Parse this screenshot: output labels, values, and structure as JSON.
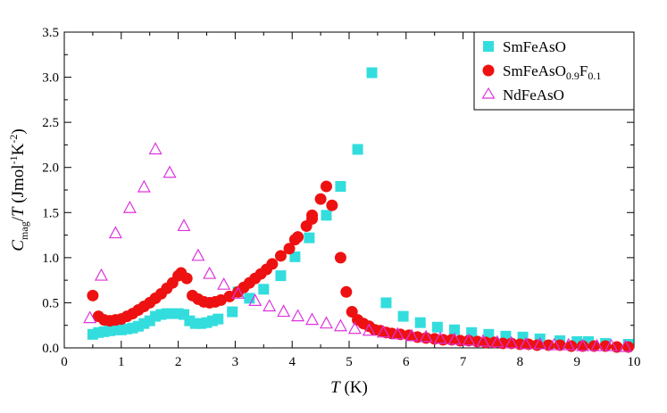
{
  "chart_data": {
    "type": "scatter",
    "xlabel": "T (K)",
    "ylabel": "C_mag/T (Jmol^-1K^-2)",
    "xlim": [
      0,
      10
    ],
    "ylim": [
      0,
      3.5
    ],
    "x_ticks": [
      "0",
      "1",
      "2",
      "3",
      "4",
      "5",
      "6",
      "7",
      "8",
      "9",
      "10"
    ],
    "y_ticks": [
      "0.0",
      "0.5",
      "1.0",
      "1.5",
      "2.0",
      "2.5",
      "3.0",
      "3.5"
    ],
    "grid": false,
    "legend": "top-right",
    "series": [
      {
        "name": "SmFeAsO",
        "marker": "square",
        "color": "#33dddd",
        "points": [
          [
            0.5,
            0.15
          ],
          [
            0.6,
            0.17
          ],
          [
            0.7,
            0.18
          ],
          [
            0.8,
            0.19
          ],
          [
            0.9,
            0.2
          ],
          [
            1.0,
            0.2
          ],
          [
            1.1,
            0.21
          ],
          [
            1.2,
            0.22
          ],
          [
            1.3,
            0.24
          ],
          [
            1.4,
            0.27
          ],
          [
            1.5,
            0.3
          ],
          [
            1.6,
            0.35
          ],
          [
            1.7,
            0.37
          ],
          [
            1.8,
            0.38
          ],
          [
            1.9,
            0.38
          ],
          [
            2.0,
            0.38
          ],
          [
            2.1,
            0.37
          ],
          [
            2.2,
            0.3
          ],
          [
            2.3,
            0.27
          ],
          [
            2.4,
            0.27
          ],
          [
            2.5,
            0.28
          ],
          [
            2.6,
            0.3
          ],
          [
            2.7,
            0.32
          ],
          [
            2.95,
            0.4
          ],
          [
            3.05,
            0.62
          ],
          [
            3.25,
            0.55
          ],
          [
            3.5,
            0.65
          ],
          [
            3.8,
            0.8
          ],
          [
            4.05,
            1.01
          ],
          [
            4.3,
            1.22
          ],
          [
            4.6,
            1.47
          ],
          [
            4.85,
            1.79
          ],
          [
            5.15,
            2.2
          ],
          [
            5.4,
            3.05
          ],
          [
            5.65,
            0.5
          ],
          [
            5.95,
            0.35
          ],
          [
            6.25,
            0.28
          ],
          [
            6.55,
            0.23
          ],
          [
            6.85,
            0.2
          ],
          [
            7.15,
            0.17
          ],
          [
            7.45,
            0.15
          ],
          [
            7.75,
            0.13
          ],
          [
            8.05,
            0.12
          ],
          [
            8.35,
            0.1
          ],
          [
            8.7,
            0.08
          ],
          [
            9.0,
            0.07
          ],
          [
            9.2,
            0.07
          ],
          [
            9.5,
            0.05
          ],
          [
            9.9,
            0.04
          ]
        ]
      },
      {
        "name": "SmFeAsO0.9F0.1",
        "marker": "circle",
        "color": "#ee1111",
        "points": [
          [
            0.5,
            0.58
          ],
          [
            0.6,
            0.35
          ],
          [
            0.7,
            0.31
          ],
          [
            0.8,
            0.3
          ],
          [
            0.9,
            0.31
          ],
          [
            1.0,
            0.32
          ],
          [
            1.1,
            0.35
          ],
          [
            1.2,
            0.38
          ],
          [
            1.3,
            0.42
          ],
          [
            1.4,
            0.46
          ],
          [
            1.5,
            0.5
          ],
          [
            1.6,
            0.55
          ],
          [
            1.7,
            0.6
          ],
          [
            1.8,
            0.66
          ],
          [
            1.9,
            0.72
          ],
          [
            2.0,
            0.8
          ],
          [
            2.05,
            0.83
          ],
          [
            2.15,
            0.77
          ],
          [
            2.25,
            0.58
          ],
          [
            2.35,
            0.54
          ],
          [
            2.45,
            0.51
          ],
          [
            2.55,
            0.5
          ],
          [
            2.65,
            0.51
          ],
          [
            2.75,
            0.53
          ],
          [
            2.9,
            0.57
          ],
          [
            3.05,
            0.62
          ],
          [
            3.15,
            0.67
          ],
          [
            3.25,
            0.72
          ],
          [
            3.35,
            0.77
          ],
          [
            3.45,
            0.82
          ],
          [
            3.55,
            0.87
          ],
          [
            3.65,
            0.93
          ],
          [
            3.8,
            1.02
          ],
          [
            3.95,
            1.1
          ],
          [
            4.05,
            1.2
          ],
          [
            4.1,
            1.23
          ],
          [
            4.25,
            1.35
          ],
          [
            4.35,
            1.43
          ],
          [
            4.35,
            1.47
          ],
          [
            4.5,
            1.65
          ],
          [
            4.6,
            1.79
          ],
          [
            4.7,
            1.58
          ],
          [
            4.85,
            1.0
          ],
          [
            4.95,
            0.62
          ],
          [
            5.05,
            0.4
          ],
          [
            5.15,
            0.31
          ],
          [
            5.25,
            0.27
          ],
          [
            5.35,
            0.24
          ],
          [
            5.45,
            0.2
          ],
          [
            5.55,
            0.19
          ],
          [
            5.65,
            0.17
          ],
          [
            5.75,
            0.16
          ],
          [
            5.9,
            0.15
          ],
          [
            6.05,
            0.14
          ],
          [
            6.2,
            0.12
          ],
          [
            6.35,
            0.11
          ],
          [
            6.5,
            0.1
          ],
          [
            6.65,
            0.09
          ],
          [
            6.8,
            0.09
          ],
          [
            6.95,
            0.08
          ],
          [
            7.1,
            0.08
          ],
          [
            7.25,
            0.07
          ],
          [
            7.4,
            0.06
          ],
          [
            7.55,
            0.06
          ],
          [
            7.7,
            0.05
          ],
          [
            7.85,
            0.05
          ],
          [
            8.0,
            0.04
          ],
          [
            8.15,
            0.04
          ],
          [
            8.3,
            0.03
          ],
          [
            8.5,
            0.03
          ],
          [
            8.7,
            0.03
          ],
          [
            8.9,
            0.02
          ],
          [
            9.1,
            0.02
          ],
          [
            9.3,
            0.02
          ],
          [
            9.5,
            0.02
          ],
          [
            9.7,
            0.01
          ],
          [
            9.9,
            0.01
          ]
        ]
      },
      {
        "name": "NdFeAsO",
        "marker": "triangle",
        "color": "#dd33dd",
        "points": [
          [
            0.45,
            0.33
          ],
          [
            0.65,
            0.8
          ],
          [
            0.9,
            1.27
          ],
          [
            1.15,
            1.55
          ],
          [
            1.4,
            1.78
          ],
          [
            1.6,
            2.2
          ],
          [
            1.85,
            1.94
          ],
          [
            2.1,
            1.35
          ],
          [
            2.35,
            1.02
          ],
          [
            2.55,
            0.82
          ],
          [
            2.8,
            0.7
          ],
          [
            3.05,
            0.6
          ],
          [
            3.35,
            0.52
          ],
          [
            3.6,
            0.46
          ],
          [
            3.85,
            0.4
          ],
          [
            4.1,
            0.35
          ],
          [
            4.35,
            0.31
          ],
          [
            4.6,
            0.27
          ],
          [
            4.85,
            0.24
          ],
          [
            5.1,
            0.21
          ],
          [
            5.35,
            0.19
          ],
          [
            5.6,
            0.17
          ],
          [
            5.85,
            0.15
          ],
          [
            6.1,
            0.13
          ],
          [
            6.35,
            0.12
          ],
          [
            6.6,
            0.1
          ],
          [
            6.85,
            0.09
          ],
          [
            7.1,
            0.08
          ],
          [
            7.35,
            0.07
          ],
          [
            7.6,
            0.06
          ],
          [
            7.85,
            0.05
          ],
          [
            8.1,
            0.04
          ],
          [
            8.35,
            0.04
          ],
          [
            8.6,
            0.03
          ],
          [
            8.85,
            0.03
          ],
          [
            9.1,
            0.02
          ],
          [
            9.35,
            0.02
          ],
          [
            9.6,
            0.02
          ],
          [
            9.85,
            0.01
          ]
        ]
      }
    ]
  }
}
